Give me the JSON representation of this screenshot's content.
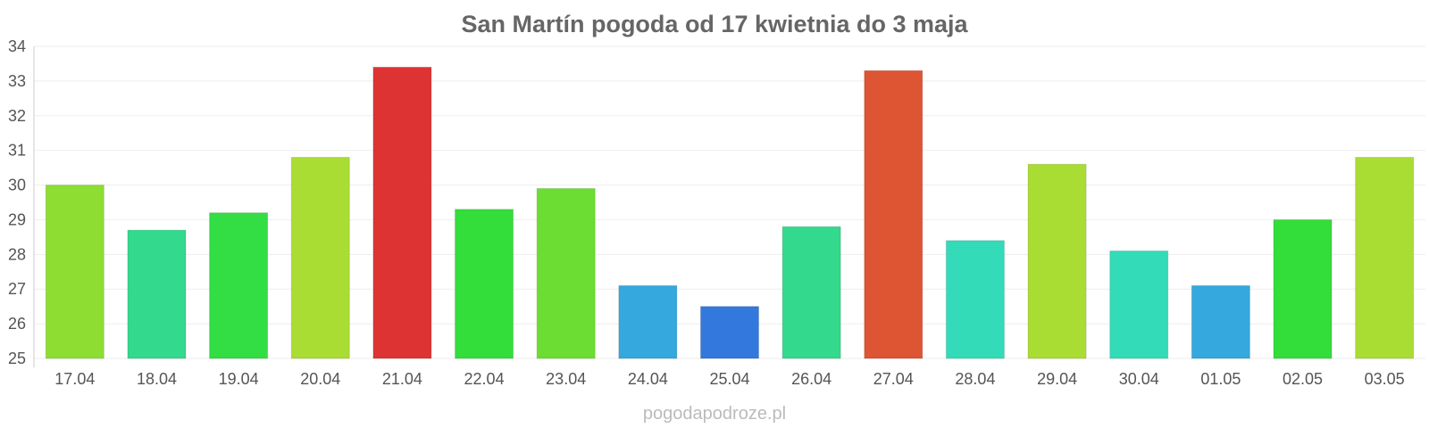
{
  "chart_data": {
    "type": "bar",
    "title": "San Martín pogoda od 17 kwietnia do 3 maja",
    "xlabel": "",
    "ylabel": "",
    "ylim": [
      25,
      34
    ],
    "yticks": [
      25,
      26,
      27,
      28,
      29,
      30,
      31,
      32,
      33,
      34
    ],
    "grid": true,
    "legend": "none",
    "categories": [
      "17.04",
      "18.04",
      "19.04",
      "20.04",
      "21.04",
      "22.04",
      "23.04",
      "24.04",
      "25.04",
      "26.04",
      "27.04",
      "28.04",
      "29.04",
      "30.04",
      "01.05",
      "02.05",
      "03.05"
    ],
    "values": [
      30.0,
      28.7,
      29.2,
      30.8,
      33.4,
      29.3,
      29.9,
      27.1,
      26.5,
      28.8,
      33.3,
      28.4,
      30.6,
      28.1,
      27.1,
      29.0,
      30.8
    ],
    "colors": [
      "#8ddd33",
      "#33d98c",
      "#33dd44",
      "#aadd33",
      "#dd3333",
      "#33dd3a",
      "#6bdd33",
      "#35a8dd",
      "#3378dd",
      "#33d98c",
      "#dd5533",
      "#33dbb8",
      "#aadd33",
      "#33dbb8",
      "#35a8dd",
      "#33dd3a",
      "#aadd33"
    ]
  },
  "watermark": "pogodapodroze.pl"
}
